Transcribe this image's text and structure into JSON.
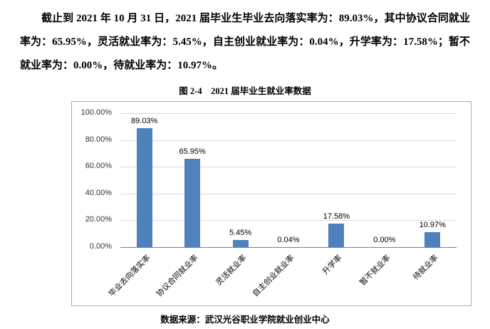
{
  "paragraph": "截止到 2021 年 10 月 31 日，2021 届毕业生毕业去向落实率为：89.03%，其中协议合同就业率为：65.95%，灵活就业率为：5.45%，自主创业就业率为：0.04%，升学率为：17.58%；暂不就业率为：0.00%，待就业率为：10.97%。",
  "chart_title": "图 2-4　2021 届毕业生就业率数据",
  "source": "数据来源：武汉光谷职业学院就业创业中心",
  "chart_data": {
    "type": "bar",
    "title": "图 2-4　2021 届毕业生就业率数据",
    "categories": [
      "毕业去向落实率",
      "协议合同就业率",
      "灵活就业率",
      "自主创业就业率",
      "升学率",
      "暂不就业率",
      "待就业率"
    ],
    "values": [
      89.03,
      65.95,
      5.45,
      0.04,
      17.58,
      0.0,
      10.97
    ],
    "value_labels": [
      "89.03%",
      "65.95%",
      "5.45%",
      "0.04%",
      "17.58%",
      "0.00%",
      "10.97%"
    ],
    "y_ticks": [
      "100.00%",
      "80.00%",
      "60.00%",
      "40.00%",
      "20.00%",
      "0.00%"
    ],
    "ylim": [
      0,
      100
    ],
    "xlabel": "",
    "ylabel": "",
    "grid": true,
    "legend": "none",
    "bar_color": "#4f81bd"
  }
}
